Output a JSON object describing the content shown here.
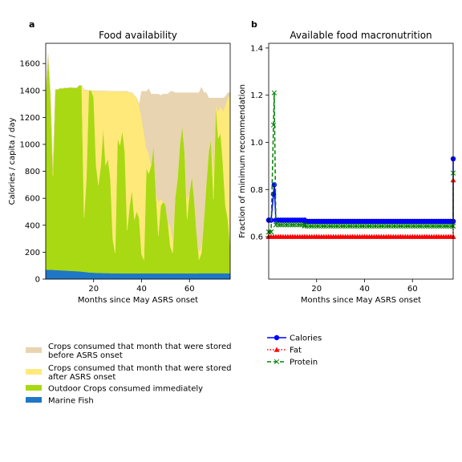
{
  "chart_data": [
    {
      "panel_label": "a",
      "type": "area",
      "title": "Food availability",
      "xlabel": "Months since May ASRS onset",
      "ylabel": "Calories / capita / day",
      "xlim": [
        0,
        77
      ],
      "ylim": [
        0,
        1750
      ],
      "xticks": [
        20,
        40,
        60
      ],
      "yticks": [
        0,
        200,
        400,
        600,
        800,
        1000,
        1200,
        1400,
        1600
      ],
      "legend_location": "below",
      "colors": {
        "fish": "#1f77c6",
        "outdoor": "#a8d913",
        "after": "#ffe97a",
        "before": "#e8d4b0"
      },
      "x": [
        0,
        1,
        2,
        3,
        4,
        5,
        6,
        7,
        8,
        9,
        10,
        11,
        12,
        13,
        14,
        15,
        16,
        17,
        18,
        19,
        20,
        21,
        22,
        23,
        24,
        25,
        26,
        27,
        28,
        29,
        30,
        31,
        32,
        33,
        34,
        35,
        36,
        37,
        38,
        39,
        40,
        41,
        42,
        43,
        44,
        45,
        46,
        47,
        48,
        49,
        50,
        51,
        52,
        53,
        54,
        55,
        56,
        57,
        58,
        59,
        60,
        61,
        62,
        63,
        64,
        65,
        66,
        67,
        68,
        69,
        70,
        71,
        72,
        73,
        74,
        75,
        76,
        77
      ],
      "series": [
        {
          "name": "Marine Fish",
          "values": [
            70,
            70,
            70,
            69,
            68,
            67,
            66,
            65,
            64,
            63,
            62,
            61,
            60,
            59,
            58,
            56,
            54,
            52,
            50,
            49,
            48,
            47,
            46,
            46,
            45,
            45,
            45,
            44,
            44,
            44,
            44,
            43,
            43,
            43,
            43,
            43,
            43,
            43,
            43,
            43,
            43,
            43,
            43,
            43,
            43,
            43,
            43,
            43,
            43,
            43,
            43,
            43,
            43,
            43,
            43,
            43,
            43,
            43,
            43,
            43,
            43,
            43,
            43,
            43,
            44,
            44,
            44,
            44,
            44,
            44,
            44,
            44,
            44,
            44,
            44,
            44,
            44,
            44
          ]
        },
        {
          "name": "Outdoor Crops consumed immediately",
          "values": [
            1300,
            1600,
            1300,
            700,
            1340,
            1340,
            1350,
            1350,
            1355,
            1355,
            1360,
            1360,
            1360,
            1360,
            1380,
            1380,
            400,
            700,
            1350,
            1350,
            1300,
            800,
            650,
            800,
            1080,
            800,
            850,
            700,
            250,
            150,
            1000,
            950,
            1060,
            900,
            320,
            500,
            620,
            400,
            460,
            410,
            140,
            100,
            780,
            740,
            800,
            960,
            600,
            280,
            500,
            530,
            510,
            380,
            200,
            150,
            560,
            700,
            960,
            1100,
            900,
            400,
            600,
            730,
            550,
            300,
            100,
            150,
            400,
            660,
            900,
            1000,
            550,
            1250,
            1000,
            1040,
            800,
            500,
            400,
            200
          ]
        },
        {
          "name": "Crops consumed that month that were stored after ASRS onset",
          "values": [
            0,
            0,
            0,
            30,
            0,
            0,
            0,
            0,
            0,
            0,
            0,
            0,
            0,
            0,
            0,
            0,
            950,
            650,
            0,
            0,
            50,
            550,
            700,
            550,
            270,
            550,
            500,
            650,
            1100,
            1200,
            350,
            400,
            290,
            450,
            1030,
            840,
            720,
            920,
            840,
            840,
            1010,
            950,
            150,
            150,
            0,
            0,
            0,
            250,
            50,
            0,
            0,
            0,
            150,
            100,
            0,
            0,
            0,
            0,
            0,
            150,
            0,
            0,
            0,
            0,
            60,
            50,
            0,
            0,
            0,
            0,
            200,
            0,
            200,
            200,
            400,
            750,
            900,
            1120
          ]
        },
        {
          "name": "Crops consumed that month that were stored before ASRS onset",
          "values": [
            0,
            0,
            0,
            0,
            0,
            0,
            0,
            0,
            0,
            0,
            0,
            0,
            0,
            0,
            0,
            0,
            0,
            0,
            0,
            0,
            0,
            0,
            0,
            0,
            0,
            0,
            0,
            0,
            0,
            0,
            0,
            0,
            0,
            0,
            0,
            0,
            0,
            0,
            0,
            0,
            200,
            300,
            420,
            480,
            530,
            370,
            730,
            800,
            770,
            800,
            820,
            950,
            1000,
            1100,
            780,
            640,
            380,
            240,
            440,
            790,
            740,
            610,
            790,
            1040,
            1180,
            1180,
            940,
            680,
            400,
            300,
            550,
            50,
            100,
            60,
            100,
            60,
            40,
            20
          ]
        }
      ]
    },
    {
      "panel_label": "b",
      "type": "line",
      "title": "Available food macronutrition",
      "xlabel": "Months since May ASRS onset",
      "ylabel": "Fraction of minimum recommendation",
      "xlim": [
        0,
        77
      ],
      "ylim": [
        0.42,
        1.42
      ],
      "xticks": [
        20,
        40,
        60
      ],
      "yticks": [
        0.6,
        0.8,
        1.0,
        1.2,
        1.4
      ],
      "legend_location": "below",
      "series": [
        {
          "name": "Calories",
          "color": "#0000ff",
          "marker": "circle",
          "dash": "solid",
          "points": [
            [
              0,
              0.67
            ],
            [
              1,
              0.67
            ],
            [
              2,
              0.78
            ],
            [
              2.3,
              0.82
            ],
            [
              3,
              0.67
            ],
            [
              15,
              0.67
            ],
            [
              15,
              0.665
            ],
            [
              77,
              0.665
            ],
            [
              77,
              0.93
            ]
          ]
        },
        {
          "name": "Fat",
          "color": "#ff0000",
          "marker": "triangle",
          "dash": "dotted",
          "points": [
            [
              0,
              0.6
            ],
            [
              77,
              0.6
            ],
            [
              77,
              0.84
            ]
          ]
        },
        {
          "name": "Protein",
          "color": "#008000",
          "marker": "x",
          "dash": "dashed",
          "points": [
            [
              0,
              0.62
            ],
            [
              1,
              0.62
            ],
            [
              2.3,
              1.21
            ],
            [
              3,
              0.65
            ],
            [
              15,
              0.65
            ],
            [
              15,
              0.645
            ],
            [
              77,
              0.645
            ],
            [
              77,
              0.87
            ]
          ]
        }
      ]
    }
  ]
}
